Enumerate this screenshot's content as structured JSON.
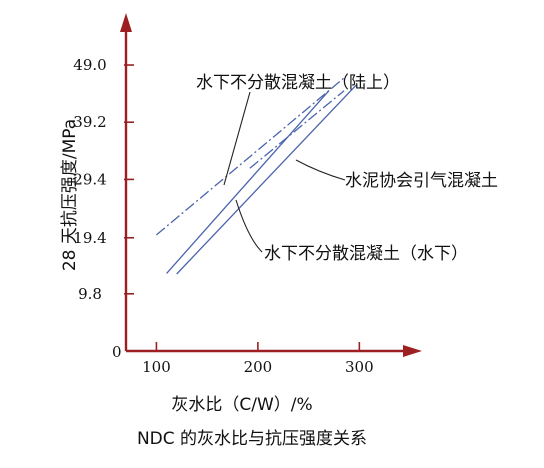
{
  "chart_data": {
    "type": "line",
    "title": "NDC 的灰水比与抗压强度关系",
    "xlabel": "灰水比（C/W）/%",
    "ylabel": "28 天抗压强度/MPa",
    "x_ticks": [
      "100",
      "200",
      "300"
    ],
    "y_ticks": [
      "9.8",
      "19.4",
      "29.4",
      "39.2",
      "49.0"
    ],
    "origin_label": "0",
    "xlim": [
      70,
      345
    ],
    "ylim": [
      0,
      55
    ],
    "grid": false,
    "legend": "none",
    "series": [
      {
        "name": "水下不分散混凝土（陆上）",
        "style": "dash-dot",
        "color": "#4a64ad",
        "x": [
          100,
          285
        ],
        "y": [
          19.9,
          46.8
        ]
      },
      {
        "name": "水泥协会引气混凝土",
        "style": "dash-dot",
        "color": "#4a64ad",
        "x": [
          192,
          285
        ],
        "y": [
          31.3,
          44.6
        ]
      },
      {
        "name": "水下不分散混凝土（水下）",
        "style": "solid",
        "color": "#4a64ad",
        "x": [
          110,
          270
        ],
        "y": [
          13.3,
          44.6
        ]
      },
      {
        "name": "",
        "style": "solid",
        "color": "#4a64ad",
        "x": [
          120,
          297
        ],
        "y": [
          13.2,
          45.6
        ]
      }
    ]
  }
}
